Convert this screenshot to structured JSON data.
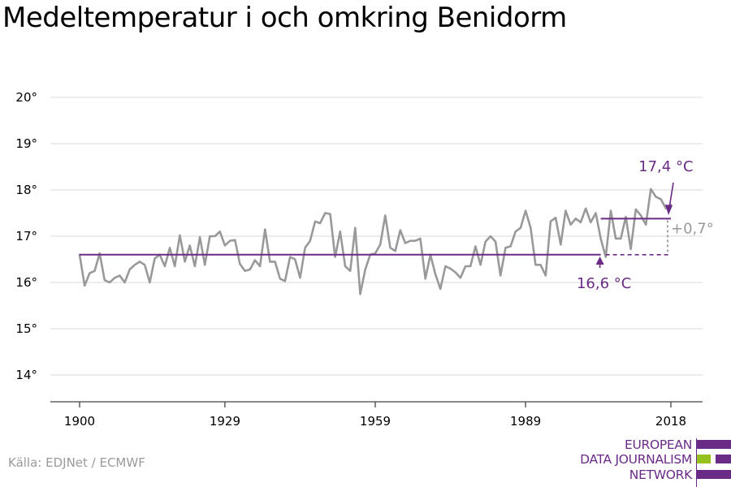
{
  "title": "Medeltemperatur i och omkring Benidorm",
  "source": "Källa: EDJNet / ECMWF",
  "logo": {
    "lines": [
      "EUROPEAN",
      "DATA JOURNALISM",
      "NETWORK"
    ],
    "colors": [
      "#6a2b86",
      "#95c11f",
      "#6a2b86"
    ]
  },
  "colors": {
    "series": "#999999",
    "accent": "#6a2b86",
    "delta": "#999999",
    "grid": "#d9d9d9"
  },
  "chart_data": {
    "type": "line",
    "title": "Medeltemperatur i och omkring Benidorm",
    "xlabel": "",
    "ylabel": "",
    "ylim": [
      13.4,
      20.3
    ],
    "xlim": [
      1900,
      2018
    ],
    "y_ticks": [
      14,
      15,
      16,
      17,
      18,
      19,
      20
    ],
    "y_tick_labels": [
      "14°",
      "15°",
      "16°",
      "17°",
      "18°",
      "19°",
      "20°"
    ],
    "x_ticks": [
      1900,
      1929,
      1959,
      1989,
      2018
    ],
    "x_tick_labels": [
      "1900",
      "1929",
      "1959",
      "1989",
      "2018"
    ],
    "grid": true,
    "series": [
      {
        "x": [
          1900,
          1901,
          1902,
          1903,
          1904,
          1905,
          1906,
          1907,
          1908,
          1909,
          1910,
          1911,
          1912,
          1913,
          1914,
          1915,
          1916,
          1917,
          1918,
          1919,
          1920,
          1921,
          1922,
          1923,
          1924,
          1925,
          1926,
          1927,
          1928,
          1929,
          1930,
          1931,
          1932,
          1933,
          1934,
          1935,
          1936,
          1937,
          1938,
          1939,
          1940,
          1941,
          1942,
          1943,
          1944,
          1945,
          1946,
          1947,
          1948,
          1949,
          1950,
          1951,
          1952,
          1953,
          1954,
          1955,
          1956,
          1957,
          1958,
          1959,
          1960,
          1961,
          1962,
          1963,
          1964,
          1965,
          1966,
          1967,
          1968,
          1969,
          1970,
          1971,
          1972,
          1973,
          1974,
          1975,
          1976,
          1977,
          1978,
          1979,
          1980,
          1981,
          1982,
          1983,
          1984,
          1985,
          1986,
          1987,
          1988,
          1989,
          1990,
          1991,
          1992,
          1993,
          1994,
          1995,
          1996,
          1997,
          1998,
          1999,
          2000,
          2001,
          2002,
          2003,
          2004,
          2005,
          2006,
          2007,
          2008,
          2009,
          2010,
          2011,
          2012,
          2013,
          2014,
          2015,
          2016,
          2017,
          2018
        ],
        "values": [
          16.6,
          15.93,
          16.2,
          16.25,
          16.63,
          16.05,
          16.0,
          16.1,
          16.15,
          16.0,
          16.28,
          16.38,
          16.45,
          16.38,
          16.0,
          16.52,
          16.6,
          16.35,
          16.75,
          16.35,
          17.02,
          16.45,
          16.8,
          16.35,
          16.98,
          16.38,
          17.0,
          17.0,
          17.1,
          16.8,
          16.9,
          16.92,
          16.4,
          16.25,
          16.28,
          16.48,
          16.35,
          17.15,
          16.45,
          16.45,
          16.08,
          16.03,
          16.55,
          16.5,
          16.1,
          16.75,
          16.9,
          17.32,
          17.28,
          17.5,
          17.48,
          16.55,
          17.1,
          16.35,
          16.25,
          17.18,
          15.75,
          16.28,
          16.6,
          16.63,
          16.82,
          17.45,
          16.75,
          16.68,
          17.13,
          16.85,
          16.9,
          16.9,
          16.95,
          16.08,
          16.6,
          16.18,
          15.86,
          16.35,
          16.3,
          16.22,
          16.1,
          16.35,
          16.35,
          16.78,
          16.38,
          16.88,
          17.0,
          16.88,
          16.15,
          16.75,
          16.78,
          17.1,
          17.18,
          17.55,
          17.18,
          16.38,
          16.38,
          16.15,
          17.32,
          17.4,
          16.82,
          17.55,
          17.25,
          17.38,
          17.3,
          17.6,
          17.3,
          17.5,
          16.95,
          16.55,
          17.55,
          16.95,
          16.95,
          17.42,
          16.72,
          17.58,
          17.45,
          17.25,
          18.02,
          17.85,
          17.8,
          17.6,
          17.68
        ]
      }
    ],
    "baseline": {
      "value": 16.6,
      "from": 1900,
      "to": 2004,
      "dashed_to": 2018,
      "label": "16,6 °C"
    },
    "recent": {
      "value": 17.38,
      "from": 2004,
      "to": 2018,
      "label": "17,4 °C"
    },
    "delta_label": "+0,7°"
  }
}
